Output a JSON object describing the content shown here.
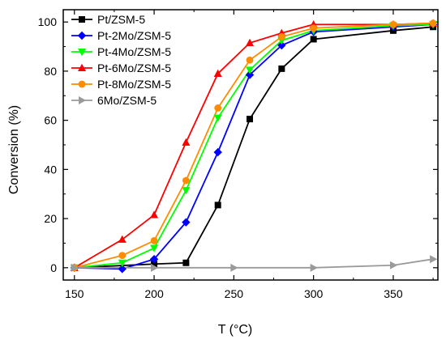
{
  "chart_data": {
    "type": "line",
    "title": "",
    "xlabel": "T (°C)",
    "ylabel": "Conversion (%)",
    "xlim": [
      143,
      378
    ],
    "ylim": [
      -5,
      105
    ],
    "x_ticks": [
      150,
      200,
      250,
      300,
      350
    ],
    "y_ticks": [
      0,
      20,
      40,
      60,
      80,
      100
    ],
    "x_tick_labels": [
      "150",
      "200",
      "250",
      "300",
      "350"
    ],
    "y_tick_labels": [
      "0",
      "20",
      "40",
      "60",
      "80",
      "100"
    ],
    "grid": false,
    "legend_position": "top-left",
    "series": [
      {
        "name": "Pt/ZSM-5",
        "color": "#000000",
        "marker": "square",
        "x": [
          150,
          200,
          220,
          240,
          260,
          280,
          300,
          350,
          375
        ],
        "y": [
          0,
          1.5,
          2,
          25.5,
          60.5,
          81,
          93,
          96.5,
          98
        ]
      },
      {
        "name": "Pt-2Mo/ZSM-5",
        "color": "#0000ff",
        "marker": "diamond",
        "x": [
          150,
          180,
          200,
          220,
          240,
          260,
          280,
          300,
          350,
          375
        ],
        "y": [
          0,
          -0.5,
          3.5,
          18.5,
          47,
          78.5,
          90.5,
          96,
          98,
          99
        ]
      },
      {
        "name": "Pt-4Mo/ZSM-5",
        "color": "#00ff00",
        "marker": "triangle-down",
        "x": [
          150,
          180,
          200,
          220,
          240,
          260,
          280,
          300,
          350,
          375
        ],
        "y": [
          0,
          2,
          8,
          31.5,
          61,
          80.5,
          92.5,
          96.5,
          98.5,
          99
        ]
      },
      {
        "name": "Pt-6Mo/ZSM-5",
        "color": "#ff0000",
        "marker": "triangle-up",
        "x": [
          150,
          180,
          200,
          220,
          240,
          260,
          280,
          300,
          350,
          375
        ],
        "y": [
          0,
          11.5,
          21.5,
          51,
          79,
          91.5,
          95.5,
          99,
          99,
          99.5
        ]
      },
      {
        "name": "Pt-8Mo/ZSM-5",
        "color": "#ff8c00",
        "marker": "circle",
        "x": [
          150,
          180,
          200,
          220,
          240,
          260,
          280,
          300,
          350,
          375
        ],
        "y": [
          0,
          5,
          11,
          35.5,
          65,
          84.5,
          94,
          97.5,
          99,
          99.5
        ]
      },
      {
        "name": "6Mo/ZSM-5",
        "color": "#9a9a9a",
        "marker": "triangle-right",
        "x": [
          150,
          200,
          250,
          300,
          350,
          375
        ],
        "y": [
          0,
          0,
          0,
          0,
          1,
          3.5
        ]
      }
    ]
  }
}
